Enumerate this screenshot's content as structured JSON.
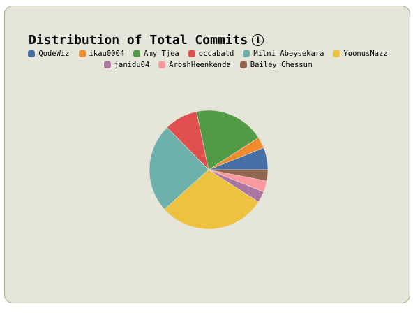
{
  "title": "Distribution of Total Commits",
  "info_icon": "info-icon",
  "chart_data": {
    "type": "pie",
    "title": "Distribution of Total Commits",
    "legend_position": "top",
    "slices": [
      {
        "name": "QodeWiz",
        "value": 6,
        "color": "#4670a5"
      },
      {
        "name": "ikau0004",
        "value": 3,
        "color": "#ef8b2c"
      },
      {
        "name": "Amy Tjea",
        "value": 19,
        "color": "#519b46"
      },
      {
        "name": "occabatd",
        "value": 9,
        "color": "#df4f4e"
      },
      {
        "name": "Milni Abeysekara",
        "value": 24,
        "color": "#6eb0ab"
      },
      {
        "name": "YoonusNazz",
        "value": 29,
        "color": "#ecc23e"
      },
      {
        "name": "janidu04",
        "value": 3,
        "color": "#ab76a1"
      },
      {
        "name": "AroshHeenkenda",
        "value": 3,
        "color": "#fd97a0"
      },
      {
        "name": "Bailey Chessum",
        "value": 3,
        "color": "#92654e"
      }
    ]
  }
}
